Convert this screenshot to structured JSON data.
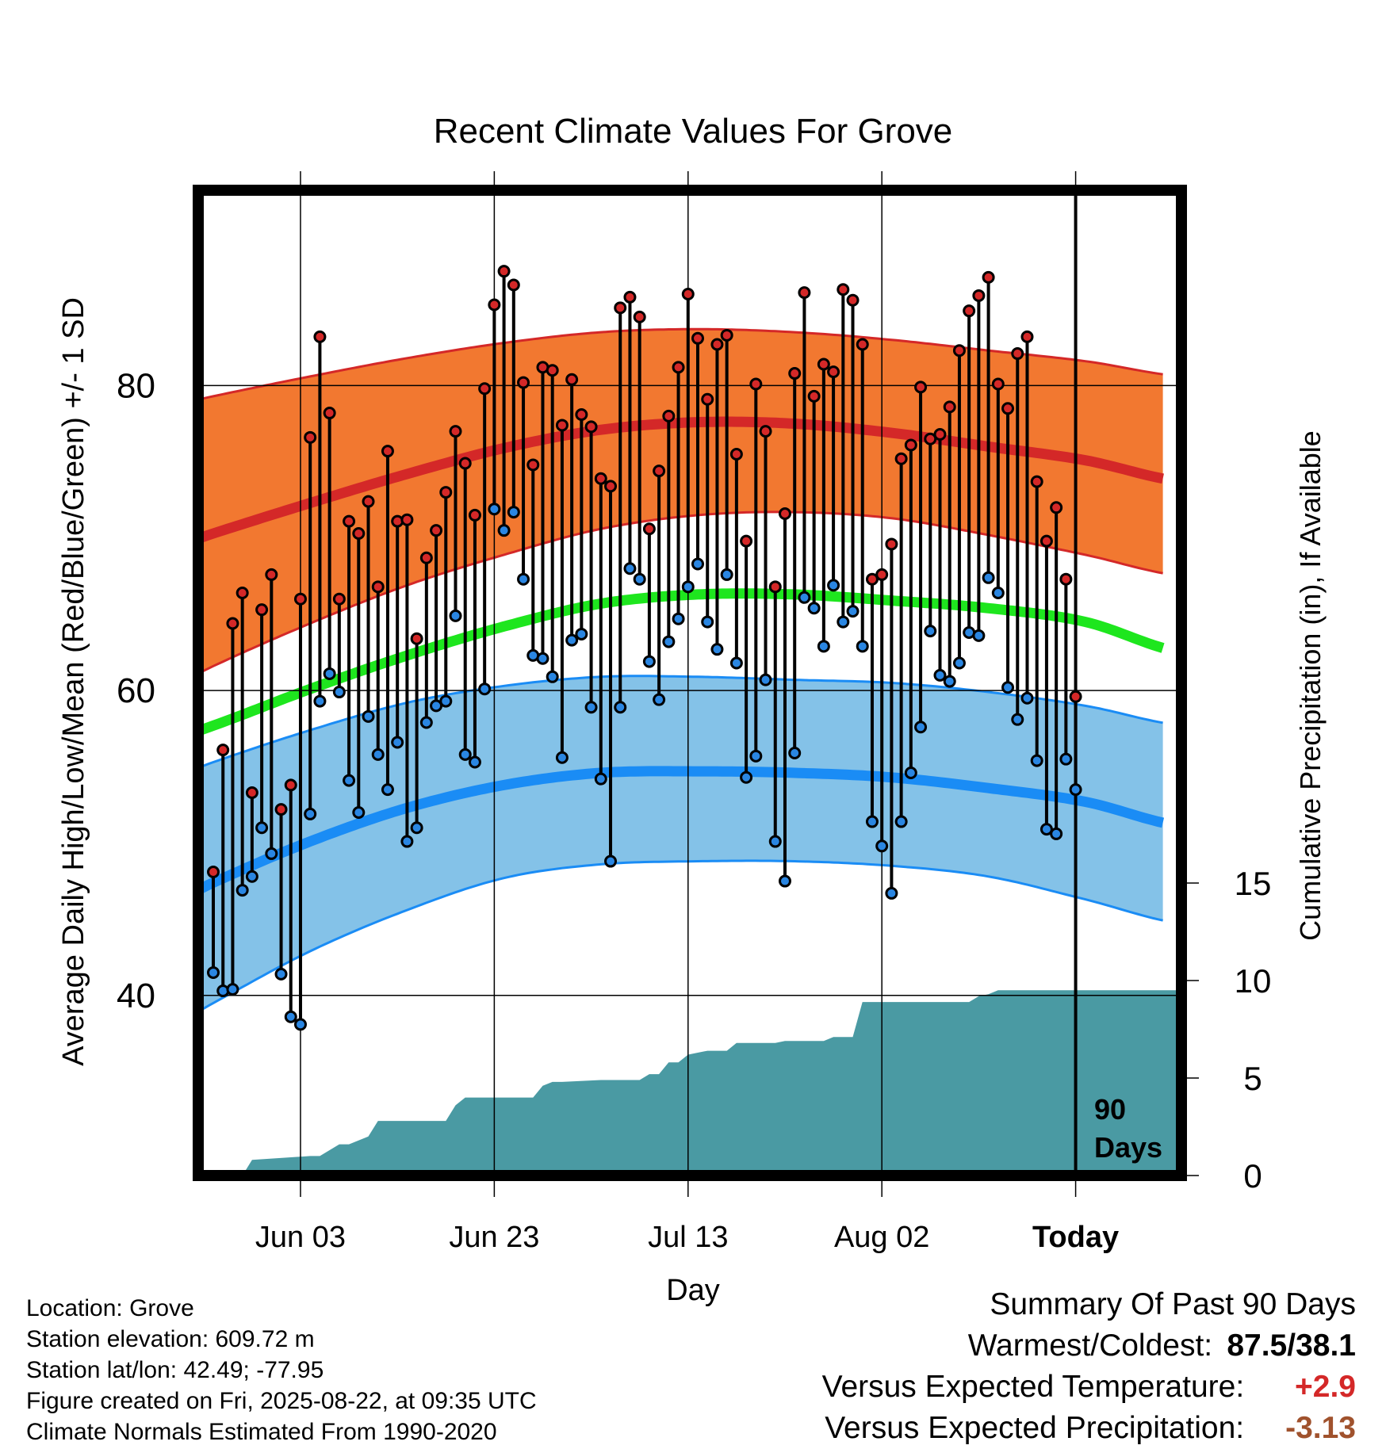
{
  "chart_data": {
    "type": "line",
    "title": "Recent Climate Values For Grove",
    "xlabel": "Day",
    "ylabel": "Average Daily High/Low/Mean (Red/Blue/Green) +/- 1 SD",
    "y2label": "Cumulative Precipitation (in), If Available",
    "x_ticks": [
      "Jun 03",
      "Jun 23",
      "Jul 13",
      "Aug 02",
      "Today"
    ],
    "y_ticks": [
      40,
      60,
      80
    ],
    "y_range": [
      28.5,
      92.5
    ],
    "y2_ticks": [
      0,
      5,
      10,
      15
    ],
    "y2_range": [
      0,
      40
    ],
    "today_marker_label": [
      "90",
      "Days"
    ],
    "grid": true,
    "colors": {
      "high_band": "#f27830",
      "high_mean": "#d42828",
      "low_band": "#84c2e8",
      "low_mean": "#1a8cf5",
      "mean": "#1ee61e",
      "precip": "#4a9aa3",
      "high_dot": "#d42828",
      "low_dot": "#2a86e2"
    },
    "normals": {
      "days": [
        -10,
        0,
        10,
        20,
        30,
        40,
        50,
        60,
        70,
        80,
        90,
        100
      ],
      "high_upper": [
        77.9,
        79.3,
        80.6,
        81.8,
        82.8,
        83.5,
        83.7,
        83.5,
        83.0,
        82.3,
        81.6,
        80.6
      ],
      "high_mean": [
        68.2,
        70.3,
        72.3,
        74.2,
        75.9,
        77.1,
        77.6,
        77.5,
        76.9,
        76.0,
        75.1,
        73.7
      ],
      "high_lower": [
        58.5,
        61.6,
        64.4,
        66.9,
        68.9,
        70.6,
        71.5,
        71.7,
        71.3,
        70.2,
        68.9,
        67.5
      ],
      "mean": [
        55.6,
        57.7,
        60.1,
        62.3,
        64.2,
        65.7,
        66.3,
        66.3,
        65.9,
        65.4,
        64.5,
        62.5
      ],
      "low_upper": [
        53.0,
        55.3,
        57.4,
        59.2,
        60.3,
        60.9,
        60.9,
        60.7,
        60.5,
        59.9,
        59.0,
        57.7
      ],
      "low_mean": [
        44.4,
        47.4,
        50.1,
        52.3,
        53.8,
        54.6,
        54.7,
        54.6,
        54.3,
        53.6,
        52.7,
        51.1
      ],
      "low_lower": [
        36.0,
        39.5,
        42.9,
        45.6,
        47.7,
        48.6,
        48.8,
        48.8,
        48.5,
        47.8,
        46.3,
        44.7
      ]
    },
    "series": [
      {
        "name": "High",
        "values": [
          48.1,
          56.1,
          64.4,
          66.4,
          53.3,
          65.3,
          67.6,
          52.2,
          53.8,
          66.0,
          76.6,
          83.2,
          78.2,
          66.0,
          71.1,
          70.3,
          72.4,
          66.8,
          75.7,
          71.1,
          71.2,
          63.4,
          68.7,
          70.5,
          73.0,
          77.0,
          74.9,
          71.5,
          79.8,
          85.3,
          87.5,
          86.6,
          80.2,
          74.8,
          81.2,
          81.0,
          77.4,
          80.4,
          78.1,
          77.3,
          73.9,
          73.4,
          85.1,
          85.8,
          84.5,
          70.6,
          74.4,
          78.0,
          81.2,
          86.0,
          83.1,
          79.1,
          82.7,
          83.3,
          75.5,
          69.8,
          80.1,
          77.0,
          66.8,
          71.6,
          80.8,
          86.1,
          79.3,
          81.4,
          80.9,
          86.3,
          85.6,
          82.7,
          67.3,
          67.6,
          69.6,
          75.2,
          76.1,
          79.9,
          76.5,
          76.8,
          78.6,
          82.3,
          84.9,
          85.9,
          87.1,
          80.1,
          78.5,
          82.1,
          83.2,
          73.7,
          69.8,
          72.0,
          67.3,
          59.6
        ],
        "color": "#d42828"
      },
      {
        "name": "Low",
        "values": [
          41.5,
          40.3,
          40.4,
          46.9,
          47.8,
          51.0,
          49.3,
          41.4,
          38.6,
          38.1,
          51.9,
          59.3,
          61.1,
          59.9,
          54.1,
          52.0,
          58.3,
          55.8,
          53.5,
          56.6,
          50.1,
          51.0,
          57.9,
          59.0,
          59.3,
          64.9,
          55.8,
          55.3,
          60.1,
          71.9,
          70.5,
          71.7,
          67.3,
          62.3,
          62.1,
          60.9,
          55.6,
          63.3,
          63.7,
          58.9,
          54.2,
          48.8,
          58.9,
          68.0,
          67.3,
          61.9,
          59.4,
          63.2,
          64.7,
          66.8,
          68.3,
          64.5,
          62.7,
          67.6,
          61.8,
          54.3,
          55.7,
          60.7,
          50.1,
          47.5,
          55.9,
          66.1,
          65.4,
          62.9,
          66.9,
          64.5,
          65.2,
          62.9,
          51.4,
          49.8,
          46.7,
          51.4,
          54.6,
          57.6,
          63.9,
          61.0,
          60.6,
          61.8,
          63.8,
          63.6,
          67.4,
          66.4,
          60.2,
          58.1,
          59.5,
          55.4,
          50.9,
          50.6,
          55.5,
          53.5
        ],
        "color": "#2a86e2"
      }
    ],
    "precipitation": {
      "days": [
        0,
        1,
        3,
        4,
        10,
        11,
        13,
        14,
        16,
        17,
        24,
        25,
        26,
        27,
        33,
        34,
        35,
        36,
        40,
        41,
        44,
        45,
        46,
        47,
        48,
        49,
        50,
        51,
        53,
        54,
        58,
        59,
        63,
        64,
        66,
        67,
        69,
        70,
        78,
        79,
        80,
        81,
        89,
        90
      ],
      "values": [
        0,
        0,
        0,
        0.8,
        1.0,
        1.0,
        1.6,
        1.6,
        2.0,
        2.8,
        2.8,
        3.6,
        4.0,
        4.0,
        4.0,
        4.6,
        4.8,
        4.8,
        4.9,
        4.9,
        4.9,
        5.2,
        5.2,
        5.8,
        5.8,
        6.2,
        6.3,
        6.4,
        6.4,
        6.8,
        6.8,
        6.9,
        6.9,
        7.1,
        7.1,
        8.9,
        8.9,
        8.9,
        8.9,
        9.2,
        9.3,
        9.5,
        9.5,
        9.5
      ]
    }
  },
  "info": {
    "location": "Location: Grove",
    "elevation": "Station elevation: 609.72 m",
    "latlon": "Station lat/lon: 42.49; -77.95",
    "created": "Figure created on Fri, 2025-08-22, at 09:35 UTC",
    "normals": "Climate Normals Estimated From 1990-2020"
  },
  "summary": {
    "heading": "Summary Of Past 90 Days",
    "warmest_label": "Warmest/Coldest:",
    "warmest_value": "87.5/38.1",
    "temp_label": "Versus Expected Temperature:",
    "temp_value": "+2.9",
    "temp_color": "#d42828",
    "precip_label": "Versus Expected Precipitation:",
    "precip_value": "-3.13",
    "precip_color": "#a0522d"
  }
}
